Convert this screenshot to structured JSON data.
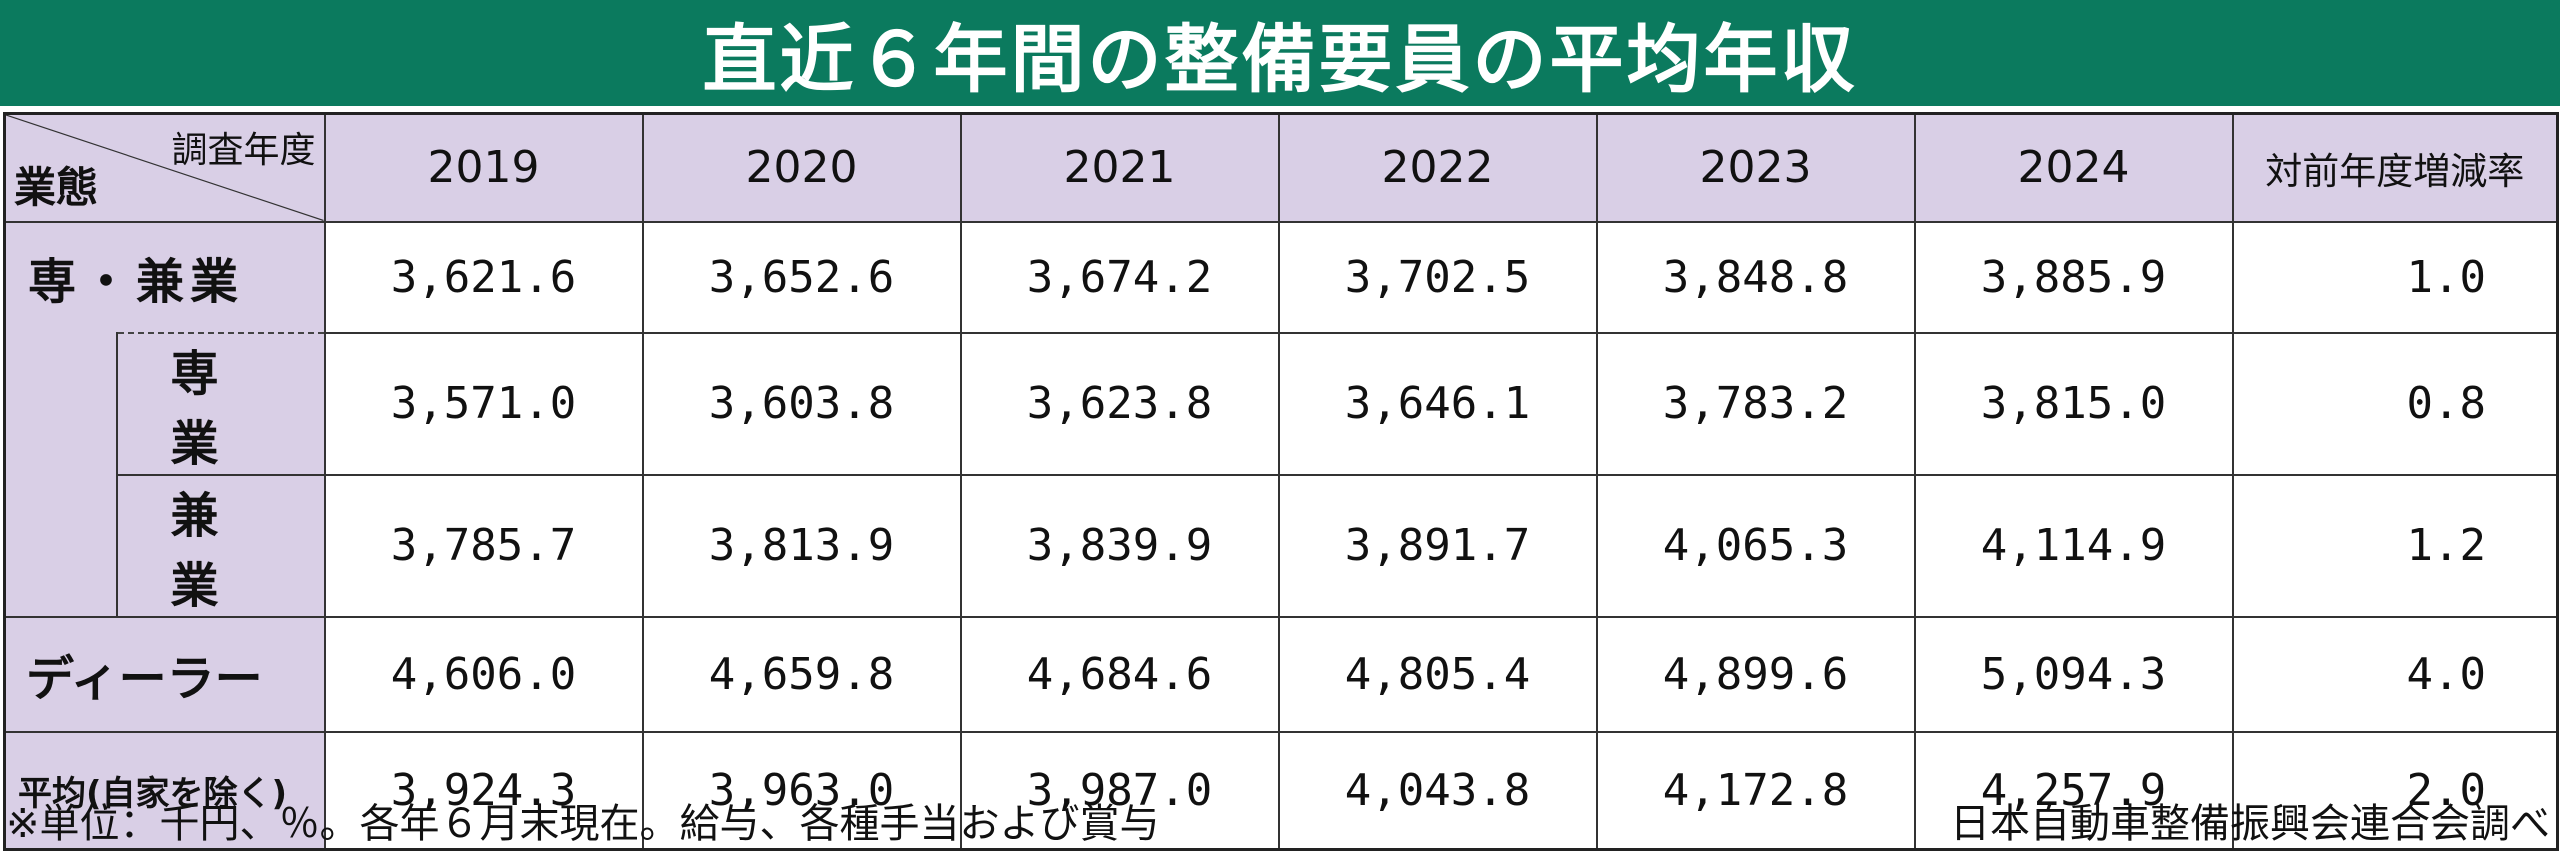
{
  "title": "直近６年間の整備要員の平均年収",
  "header": {
    "corner_top": "調査年度",
    "corner_bottom": "業態",
    "change_label": "対前年度増減率"
  },
  "chart_data": {
    "type": "table",
    "years": [
      "2019",
      "2020",
      "2021",
      "2022",
      "2023",
      "2024"
    ],
    "rows": [
      {
        "label": "専・兼業",
        "values": [
          "3,621.6",
          "3,652.6",
          "3,674.2",
          "3,702.5",
          "3,848.8",
          "3,885.9"
        ],
        "change": "1.0"
      },
      {
        "label": "専　業",
        "values": [
          "3,571.0",
          "3,603.8",
          "3,623.8",
          "3,646.1",
          "3,783.2",
          "3,815.0"
        ],
        "change": "0.8"
      },
      {
        "label": "兼　業",
        "values": [
          "3,785.7",
          "3,813.9",
          "3,839.9",
          "3,891.7",
          "4,065.3",
          "4,114.9"
        ],
        "change": "1.2"
      },
      {
        "label": "ディーラー",
        "values": [
          "4,606.0",
          "4,659.8",
          "4,684.6",
          "4,805.4",
          "4,899.6",
          "5,094.3"
        ],
        "change": "4.0"
      },
      {
        "label": "平均(自家を除く)",
        "values": [
          "3,924.3",
          "3,963.0",
          "3,987.0",
          "4,043.8",
          "4,172.8",
          "4,257.9"
        ],
        "change": "2.0"
      }
    ]
  },
  "footer": {
    "note": "※単位：千円、％。各年６月末現在。給与、各種手当および賞与",
    "source": "日本自動車整備振興会連合会調べ"
  },
  "colors": {
    "title_bg": "#0b7a5e",
    "header_bg": "#d9cfe6"
  }
}
